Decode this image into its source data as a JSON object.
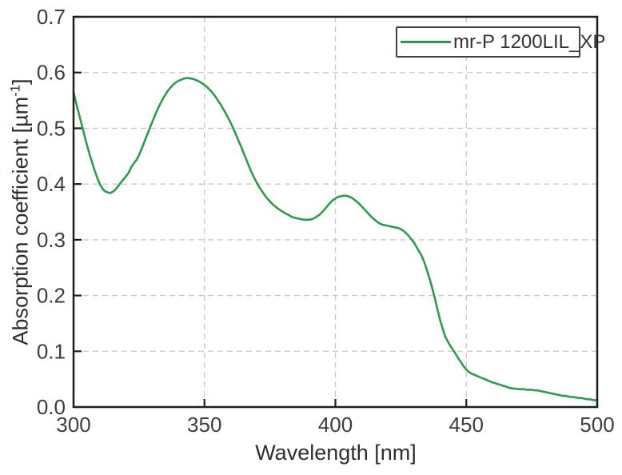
{
  "colors": {
    "series_green": "#2e9b4d",
    "grid": "#c9c9c9",
    "frame": "#1f1f1f",
    "tick_label": "#3d3d3d",
    "axis_title": "#2e2e2e",
    "legend_border": "#414141",
    "background": "#ffffff"
  },
  "chart_data": {
    "type": "line",
    "title": "",
    "xlabel": "Wavelength [nm]",
    "ylabel": "Absorption coefficient [µm⁻¹]",
    "ylabel_parts": {
      "pre": "Absorption coefficient [µm",
      "sup": "-1",
      "post": "]"
    },
    "xlim": [
      300,
      500
    ],
    "ylim": [
      0.0,
      0.7
    ],
    "xticks": [
      300,
      350,
      400,
      450,
      500
    ],
    "yticks": [
      0.0,
      0.1,
      0.2,
      0.3,
      0.4,
      0.5,
      0.6,
      0.7
    ],
    "xtick_labels": [
      "300",
      "350",
      "400",
      "450",
      "500"
    ],
    "ytick_labels": [
      "0.0",
      "0.1",
      "0.2",
      "0.3",
      "0.4",
      "0.5",
      "0.6",
      "0.7"
    ],
    "grid": {
      "visible": true,
      "style": "dashed",
      "color": "#c9c9c9"
    },
    "legend": {
      "position": "top-right",
      "entries": [
        {
          "label": "mr-P 1200LIL_XP",
          "color": "#2e9b4d"
        }
      ]
    },
    "series": [
      {
        "name": "mr-P 1200LIL_XP",
        "color": "#2e9b4d",
        "points": [
          [
            300,
            0.565
          ],
          [
            301,
            0.545
          ],
          [
            302,
            0.527
          ],
          [
            303,
            0.509
          ],
          [
            304,
            0.49
          ],
          [
            305,
            0.472
          ],
          [
            306,
            0.455
          ],
          [
            307,
            0.44
          ],
          [
            308,
            0.425
          ],
          [
            309,
            0.412
          ],
          [
            310,
            0.4
          ],
          [
            311,
            0.392
          ],
          [
            312,
            0.387
          ],
          [
            313,
            0.385
          ],
          [
            314,
            0.384
          ],
          [
            315,
            0.386
          ],
          [
            316,
            0.39
          ],
          [
            317,
            0.396
          ],
          [
            318,
            0.402
          ],
          [
            319,
            0.408
          ],
          [
            320,
            0.414
          ],
          [
            321,
            0.42
          ],
          [
            322,
            0.43
          ],
          [
            323,
            0.437
          ],
          [
            324,
            0.443
          ],
          [
            325,
            0.452
          ],
          [
            326,
            0.463
          ],
          [
            327,
            0.475
          ],
          [
            328,
            0.487
          ],
          [
            329,
            0.499
          ],
          [
            330,
            0.511
          ],
          [
            331,
            0.522
          ],
          [
            332,
            0.533
          ],
          [
            333,
            0.543
          ],
          [
            334,
            0.552
          ],
          [
            335,
            0.56
          ],
          [
            336,
            0.567
          ],
          [
            337,
            0.573
          ],
          [
            338,
            0.578
          ],
          [
            339,
            0.582
          ],
          [
            340,
            0.585
          ],
          [
            341,
            0.587
          ],
          [
            342,
            0.589
          ],
          [
            343,
            0.59
          ],
          [
            344,
            0.59
          ],
          [
            345,
            0.589
          ],
          [
            346,
            0.588
          ],
          [
            347,
            0.586
          ],
          [
            348,
            0.584
          ],
          [
            349,
            0.581
          ],
          [
            350,
            0.578
          ],
          [
            351,
            0.574
          ],
          [
            352,
            0.569
          ],
          [
            353,
            0.564
          ],
          [
            354,
            0.558
          ],
          [
            355,
            0.551
          ],
          [
            356,
            0.544
          ],
          [
            357,
            0.536
          ],
          [
            358,
            0.528
          ],
          [
            359,
            0.519
          ],
          [
            360,
            0.51
          ],
          [
            361,
            0.5
          ],
          [
            362,
            0.489
          ],
          [
            363,
            0.478
          ],
          [
            364,
            0.467
          ],
          [
            365,
            0.455
          ],
          [
            366,
            0.444
          ],
          [
            367,
            0.432
          ],
          [
            368,
            0.421
          ],
          [
            369,
            0.411
          ],
          [
            370,
            0.402
          ],
          [
            371,
            0.394
          ],
          [
            372,
            0.387
          ],
          [
            373,
            0.38
          ],
          [
            374,
            0.374
          ],
          [
            375,
            0.369
          ],
          [
            376,
            0.364
          ],
          [
            377,
            0.36
          ],
          [
            378,
            0.356
          ],
          [
            379,
            0.353
          ],
          [
            380,
            0.35
          ],
          [
            381,
            0.347
          ],
          [
            382,
            0.345
          ],
          [
            383,
            0.342
          ],
          [
            384,
            0.34
          ],
          [
            385,
            0.339
          ],
          [
            386,
            0.338
          ],
          [
            387,
            0.337
          ],
          [
            388,
            0.336
          ],
          [
            389,
            0.336
          ],
          [
            390,
            0.336
          ],
          [
            391,
            0.337
          ],
          [
            392,
            0.339
          ],
          [
            393,
            0.342
          ],
          [
            394,
            0.345
          ],
          [
            395,
            0.35
          ],
          [
            396,
            0.355
          ],
          [
            397,
            0.361
          ],
          [
            398,
            0.366
          ],
          [
            399,
            0.371
          ],
          [
            400,
            0.374
          ],
          [
            401,
            0.377
          ],
          [
            402,
            0.378
          ],
          [
            403,
            0.379
          ],
          [
            404,
            0.379
          ],
          [
            405,
            0.378
          ],
          [
            406,
            0.376
          ],
          [
            407,
            0.373
          ],
          [
            408,
            0.369
          ],
          [
            409,
            0.365
          ],
          [
            410,
            0.36
          ],
          [
            411,
            0.355
          ],
          [
            412,
            0.35
          ],
          [
            413,
            0.345
          ],
          [
            414,
            0.34
          ],
          [
            415,
            0.336
          ],
          [
            416,
            0.332
          ],
          [
            417,
            0.329
          ],
          [
            418,
            0.327
          ],
          [
            419,
            0.326
          ],
          [
            420,
            0.325
          ],
          [
            421,
            0.324
          ],
          [
            422,
            0.323
          ],
          [
            423,
            0.322
          ],
          [
            424,
            0.321
          ],
          [
            425,
            0.319
          ],
          [
            426,
            0.316
          ],
          [
            427,
            0.312
          ],
          [
            428,
            0.307
          ],
          [
            429,
            0.301
          ],
          [
            430,
            0.295
          ],
          [
            431,
            0.287
          ],
          [
            432,
            0.279
          ],
          [
            433,
            0.271
          ],
          [
            434,
            0.259
          ],
          [
            435,
            0.245
          ],
          [
            436,
            0.23
          ],
          [
            437,
            0.213
          ],
          [
            438,
            0.195
          ],
          [
            439,
            0.175
          ],
          [
            440,
            0.156
          ],
          [
            441,
            0.14
          ],
          [
            442,
            0.126
          ],
          [
            443,
            0.117
          ],
          [
            444,
            0.109
          ],
          [
            445,
            0.102
          ],
          [
            446,
            0.095
          ],
          [
            447,
            0.087
          ],
          [
            448,
            0.08
          ],
          [
            449,
            0.073
          ],
          [
            450,
            0.067
          ],
          [
            451,
            0.063
          ],
          [
            452,
            0.06
          ],
          [
            453,
            0.058
          ],
          [
            454,
            0.056
          ],
          [
            455,
            0.054
          ],
          [
            456,
            0.052
          ],
          [
            457,
            0.05
          ],
          [
            458,
            0.048
          ],
          [
            459,
            0.046
          ],
          [
            460,
            0.044
          ],
          [
            461,
            0.043
          ],
          [
            462,
            0.041
          ],
          [
            463,
            0.04
          ],
          [
            464,
            0.038
          ],
          [
            465,
            0.037
          ],
          [
            466,
            0.035
          ],
          [
            467,
            0.034
          ],
          [
            468,
            0.033
          ],
          [
            469,
            0.033
          ],
          [
            470,
            0.032
          ],
          [
            471,
            0.032
          ],
          [
            472,
            0.032
          ],
          [
            473,
            0.031
          ],
          [
            474,
            0.031
          ],
          [
            475,
            0.031
          ],
          [
            476,
            0.03
          ],
          [
            477,
            0.03
          ],
          [
            478,
            0.029
          ],
          [
            479,
            0.028
          ],
          [
            480,
            0.027
          ],
          [
            481,
            0.026
          ],
          [
            482,
            0.025
          ],
          [
            483,
            0.024
          ],
          [
            484,
            0.023
          ],
          [
            485,
            0.022
          ],
          [
            486,
            0.021
          ],
          [
            487,
            0.02
          ],
          [
            488,
            0.02
          ],
          [
            489,
            0.019
          ],
          [
            490,
            0.018
          ],
          [
            491,
            0.018
          ],
          [
            492,
            0.017
          ],
          [
            493,
            0.016
          ],
          [
            494,
            0.016
          ],
          [
            495,
            0.015
          ],
          [
            496,
            0.014
          ],
          [
            497,
            0.014
          ],
          [
            498,
            0.013
          ],
          [
            499,
            0.012
          ],
          [
            500,
            0.012
          ]
        ]
      }
    ]
  }
}
